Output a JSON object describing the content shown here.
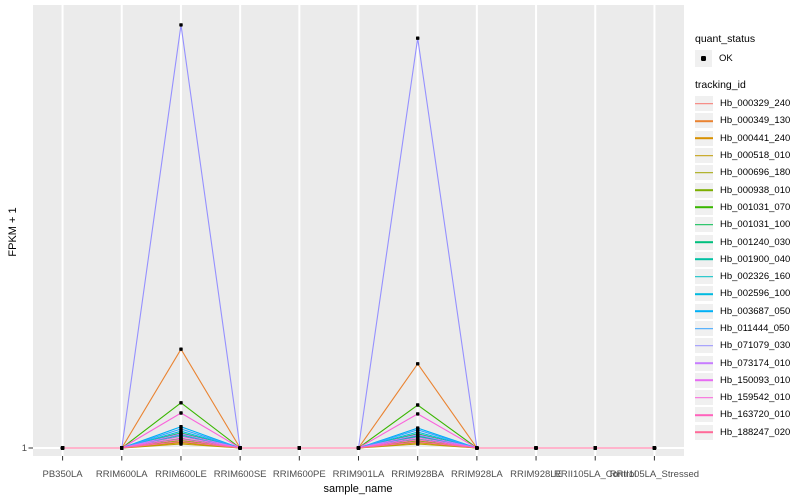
{
  "figure": {
    "x_axis_title": "sample_name",
    "y_axis_title": "FPKM + 1",
    "y_tick_label": "1"
  },
  "legend": {
    "quant_status_title": "quant_status",
    "quant_status_entries": [
      {
        "label": "OK",
        "marker": "black-point"
      }
    ],
    "tracking_id_title": "tracking_id"
  },
  "chart_data": {
    "type": "line",
    "title": "",
    "xlabel": "sample_name",
    "ylabel": "FPKM + 1",
    "y_axis": {
      "tick_labels": [
        "1"
      ],
      "note": "only y=1 is labeled; series values are fractions of panel height above the y=1 baseline"
    },
    "categories": [
      "PB350LA",
      "RRIM600LA",
      "RRIM600LE",
      "RRIM600SE",
      "RRIM600PE",
      "RRIM901LA",
      "RRIM928BA",
      "RRIM928LA",
      "RRIM928LE",
      "RRII105LA_Control",
      "RRII105LA_Stressed"
    ],
    "series": [
      {
        "name": "Hb_000329_240",
        "color": "#F8766D",
        "values": [
          0,
          0,
          0.022,
          0,
          0,
          0,
          0.02,
          0,
          0,
          0,
          0
        ]
      },
      {
        "name": "Hb_000349_130",
        "color": "#EA8331",
        "values": [
          0,
          0,
          0.223,
          0,
          0,
          0,
          0.19,
          0,
          0,
          0,
          0
        ]
      },
      {
        "name": "Hb_000441_240",
        "color": "#D89000",
        "values": [
          0,
          0,
          0.012,
          0,
          0,
          0,
          0.012,
          0,
          0,
          0,
          0
        ]
      },
      {
        "name": "Hb_000518_010",
        "color": "#C09B00",
        "values": [
          0,
          0,
          0.009,
          0,
          0,
          0,
          0.009,
          0,
          0,
          0,
          0
        ]
      },
      {
        "name": "Hb_000696_180",
        "color": "#A3A500",
        "values": [
          0,
          0,
          0.014,
          0,
          0,
          0,
          0.013,
          0,
          0,
          0,
          0
        ]
      },
      {
        "name": "Hb_000938_010",
        "color": "#7CAE00",
        "values": [
          0,
          0,
          0.017,
          0,
          0,
          0,
          0.016,
          0,
          0,
          0,
          0
        ]
      },
      {
        "name": "Hb_001031_070",
        "color": "#39B600",
        "values": [
          0,
          0,
          0.102,
          0,
          0,
          0,
          0.097,
          0,
          0,
          0,
          0
        ]
      },
      {
        "name": "Hb_001031_100",
        "color": "#00BB4E",
        "values": [
          0,
          0,
          0.034,
          0,
          0,
          0,
          0.032,
          0,
          0,
          0,
          0
        ]
      },
      {
        "name": "Hb_001240_030",
        "color": "#00BF7D",
        "values": [
          0,
          0,
          0.027,
          0,
          0,
          0,
          0.026,
          0,
          0,
          0,
          0
        ]
      },
      {
        "name": "Hb_001900_040",
        "color": "#00C1A3",
        "values": [
          0,
          0,
          0.021,
          0,
          0,
          0,
          0.02,
          0,
          0,
          0,
          0
        ]
      },
      {
        "name": "Hb_002326_160",
        "color": "#00BFC4",
        "values": [
          0,
          0,
          0.03,
          0,
          0,
          0,
          0.028,
          0,
          0,
          0,
          0
        ]
      },
      {
        "name": "Hb_002596_100",
        "color": "#00BAE0",
        "values": [
          0,
          0,
          0.038,
          0,
          0,
          0,
          0.036,
          0,
          0,
          0,
          0
        ]
      },
      {
        "name": "Hb_003687_050",
        "color": "#00B0F6",
        "values": [
          0,
          0,
          0.048,
          0,
          0,
          0,
          0.045,
          0,
          0,
          0,
          0
        ]
      },
      {
        "name": "Hb_011444_050",
        "color": "#35A2FF",
        "values": [
          0,
          0,
          0.043,
          0,
          0,
          0,
          0.041,
          0,
          0,
          0,
          0
        ]
      },
      {
        "name": "Hb_071079_030",
        "color": "#9590FF",
        "values": [
          0,
          0,
          0.955,
          0,
          0,
          0,
          0.925,
          0,
          0,
          0,
          0
        ]
      },
      {
        "name": "Hb_073174_010",
        "color": "#C77CFF",
        "values": [
          0,
          0,
          0.032,
          0,
          0,
          0,
          0.03,
          0,
          0,
          0,
          0
        ]
      },
      {
        "name": "Hb_150093_010",
        "color": "#E76BF3",
        "values": [
          0,
          0,
          0.026,
          0,
          0,
          0,
          0.024,
          0,
          0,
          0,
          0
        ]
      },
      {
        "name": "Hb_159542_010",
        "color": "#FA62DB",
        "values": [
          0,
          0,
          0.079,
          0,
          0,
          0,
          0.077,
          0,
          0,
          0,
          0
        ]
      },
      {
        "name": "Hb_163720_010",
        "color": "#FF62BC",
        "values": [
          0,
          0,
          0.02,
          0,
          0,
          0,
          0.019,
          0,
          0,
          0,
          0
        ]
      },
      {
        "name": "Hb_188247_020",
        "color": "#FF6A98",
        "values": [
          0,
          0,
          0.015,
          0,
          0,
          0,
          0.014,
          0,
          0,
          0,
          0
        ]
      }
    ],
    "layout": {
      "panel_background": "#EBEBEB",
      "gridline_color": "#FFFFFF",
      "grid": "major vertical gridline per category, horizontal gridline at y=1",
      "legend_position": "right",
      "point_color": "#000000",
      "point_shape": "small filled square"
    }
  }
}
